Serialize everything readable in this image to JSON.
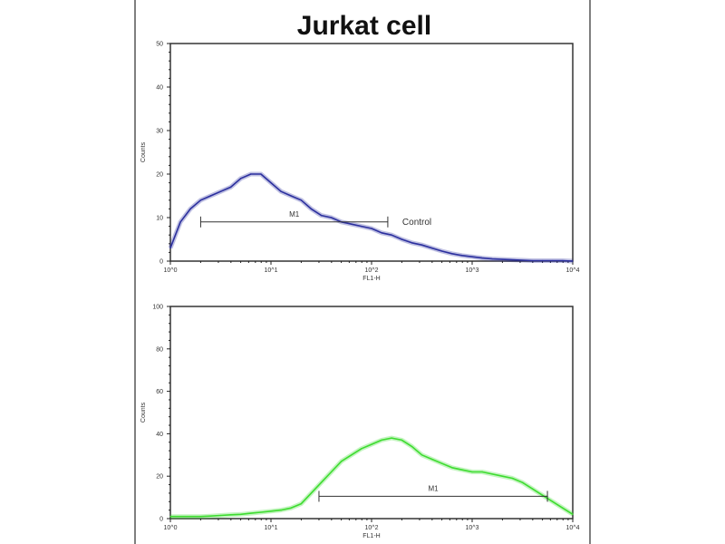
{
  "title": "Jurkat cell",
  "colors": {
    "control": "#2b2f9e",
    "sample": "#3ddc2f",
    "axis": "#222222"
  },
  "chart_data": [
    {
      "type": "area",
      "title": "",
      "xlabel": "FL1-H",
      "ylabel": "Counts",
      "xscale": "log",
      "xlim": [
        1,
        10000
      ],
      "ylim": [
        0,
        50
      ],
      "x_ticks": [
        "10^0",
        "10^1",
        "10^2",
        "10^3",
        "10^4"
      ],
      "y_ticks": [
        "0",
        "10",
        "20",
        "30",
        "40",
        "50"
      ],
      "grid": false,
      "x": [
        1,
        1.26,
        1.58,
        2,
        2.51,
        3.16,
        3.98,
        5.01,
        6.31,
        7.94,
        10,
        12.6,
        15.8,
        20,
        25.1,
        31.6,
        39.8,
        50.1,
        63.1,
        79.4,
        100,
        126,
        158,
        200,
        251,
        316,
        398,
        501,
        631,
        794,
        1000,
        1259,
        1585,
        1995,
        2512,
        3162,
        3981,
        5012,
        6310,
        7943,
        10000
      ],
      "series": [
        {
          "name": "Control",
          "color": "#2b2f9e",
          "values": [
            3,
            9,
            12,
            14,
            15,
            16,
            17,
            19,
            20,
            20,
            18,
            16,
            15,
            14,
            12,
            10.5,
            10,
            9,
            8.5,
            8,
            7.5,
            6.5,
            6,
            5,
            4.2,
            3.7,
            3,
            2.3,
            1.7,
            1.3,
            1,
            0.7,
            0.5,
            0.4,
            0.3,
            0.2,
            0.1,
            0.1,
            0.1,
            0.1,
            0
          ]
        }
      ],
      "gate": {
        "label": "M1",
        "range": [
          2,
          145
        ],
        "level": 9
      }
    },
    {
      "type": "area",
      "title": "",
      "xlabel": "FL1-H",
      "ylabel": "Counts",
      "xscale": "log",
      "xlim": [
        1,
        10000
      ],
      "ylim": [
        0,
        100
      ],
      "x_ticks": [
        "10^0",
        "10^1",
        "10^2",
        "10^3",
        "10^4"
      ],
      "y_ticks": [
        "0",
        "20",
        "40",
        "60",
        "80",
        "100"
      ],
      "grid": false,
      "x": [
        1,
        1.26,
        1.58,
        2,
        2.51,
        3.16,
        3.98,
        5.01,
        6.31,
        7.94,
        10,
        12.6,
        15.8,
        20,
        25.1,
        31.6,
        39.8,
        50.1,
        63.1,
        79.4,
        100,
        126,
        158,
        200,
        251,
        316,
        398,
        501,
        631,
        794,
        1000,
        1259,
        1585,
        1995,
        2512,
        3162,
        3981,
        5012,
        6310,
        7943,
        10000
      ],
      "series": [
        {
          "color": "#3ddc2f",
          "values": [
            1,
            1,
            1,
            1,
            1.2,
            1.5,
            1.8,
            2,
            2.5,
            3,
            3.5,
            4,
            5,
            7,
            12,
            17,
            22,
            27,
            30,
            33,
            35,
            37,
            38,
            37,
            34,
            30,
            28,
            26,
            24,
            23,
            22,
            22,
            21,
            20,
            19,
            17,
            14,
            11,
            8,
            5,
            2
          ]
        }
      ],
      "gate": {
        "label": "M1",
        "range": [
          30,
          5600
        ],
        "level": 10.5
      }
    }
  ]
}
